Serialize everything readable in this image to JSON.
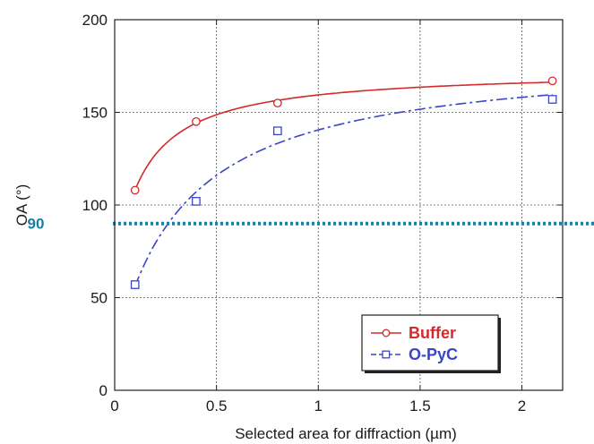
{
  "chart_data": {
    "type": "scatter",
    "xlabel": "Selected area for diffraction (µm)",
    "ylabel": "OA (°)",
    "xlim": [
      0,
      2.2
    ],
    "ylim": [
      0,
      200
    ],
    "x_ticks": [
      "0",
      "0.5",
      "1",
      "1.5",
      "2"
    ],
    "y_ticks": [
      "0",
      "50",
      "100",
      "150",
      "200"
    ],
    "grid": true,
    "legend_position": "bottom-right",
    "series": [
      {
        "name": "Buffer",
        "color": "#d42a2a",
        "marker": "circle",
        "line_style": "solid",
        "points": [
          {
            "x": 0.1,
            "y": 108
          },
          {
            "x": 0.4,
            "y": 145
          },
          {
            "x": 0.8,
            "y": 155
          },
          {
            "x": 2.15,
            "y": 167
          }
        ]
      },
      {
        "name": "O-PyC",
        "color": "#3a45c8",
        "marker": "square",
        "line_style": "dash-dot",
        "points": [
          {
            "x": 0.1,
            "y": 57
          },
          {
            "x": 0.4,
            "y": 102
          },
          {
            "x": 0.8,
            "y": 140
          },
          {
            "x": 2.15,
            "y": 157
          }
        ]
      }
    ],
    "reference_line": {
      "y": 90,
      "label": "90",
      "color": "#1a7fa0",
      "style": "dotted"
    }
  }
}
